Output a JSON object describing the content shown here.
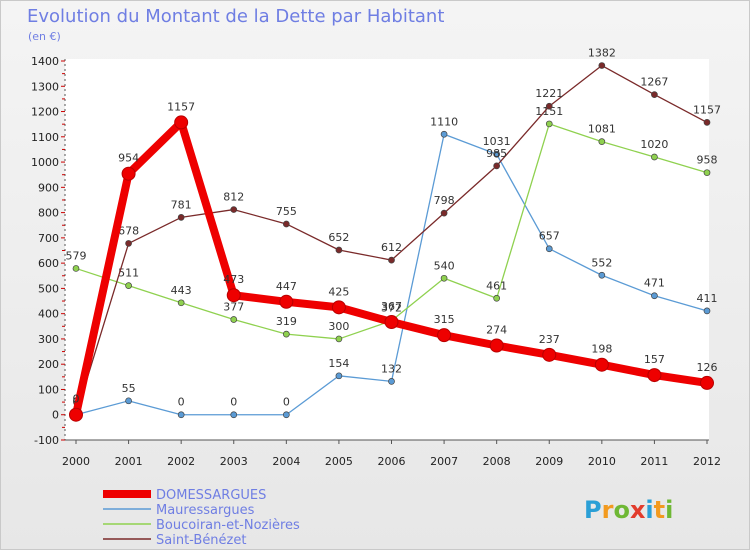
{
  "title": "Evolution du Montant de la Dette par Habitant",
  "subtitle": "(en €)",
  "brand": {
    "letters": [
      "P",
      "r",
      "o",
      "x",
      "i",
      "t",
      "i"
    ],
    "colors": [
      "#2a9fd6",
      "#f29a1f",
      "#6fb835",
      "#e23c2c",
      "#2a9fd6",
      "#f29a1f",
      "#6fb835"
    ]
  },
  "chart_data": {
    "type": "line",
    "x": [
      "2000",
      "2001",
      "2002",
      "2003",
      "2004",
      "2005",
      "2006",
      "2007",
      "2008",
      "2009",
      "2010",
      "2011",
      "2012"
    ],
    "ylim": [
      -100,
      1400
    ],
    "yticks": [
      -100,
      0,
      100,
      200,
      300,
      400,
      500,
      600,
      700,
      800,
      900,
      1000,
      1100,
      1200,
      1300,
      1400
    ],
    "grid": false,
    "legend_position": "bottom-left",
    "series": [
      {
        "name": "DOMESSARGUES",
        "color": "#ee0000",
        "thick": true,
        "values": [
          0,
          954,
          1157,
          473,
          447,
          425,
          367,
          315,
          274,
          237,
          198,
          157,
          126
        ]
      },
      {
        "name": "Mauressargues",
        "color": "#5b9bd5",
        "thick": false,
        "values": [
          0,
          55,
          0,
          0,
          0,
          154,
          132,
          1110,
          1031,
          657,
          552,
          471,
          411
        ]
      },
      {
        "name": "Boucoiran-et-Nozières",
        "color": "#8fd14f",
        "thick": false,
        "values": [
          579,
          511,
          443,
          377,
          319,
          300,
          372,
          540,
          461,
          1151,
          1081,
          1020,
          958
        ]
      },
      {
        "name": "Saint-Bénézet",
        "color": "#7a2a2a",
        "thick": false,
        "values": [
          0,
          678,
          781,
          812,
          755,
          652,
          612,
          798,
          985,
          1221,
          1382,
          1267,
          1157
        ]
      }
    ]
  }
}
